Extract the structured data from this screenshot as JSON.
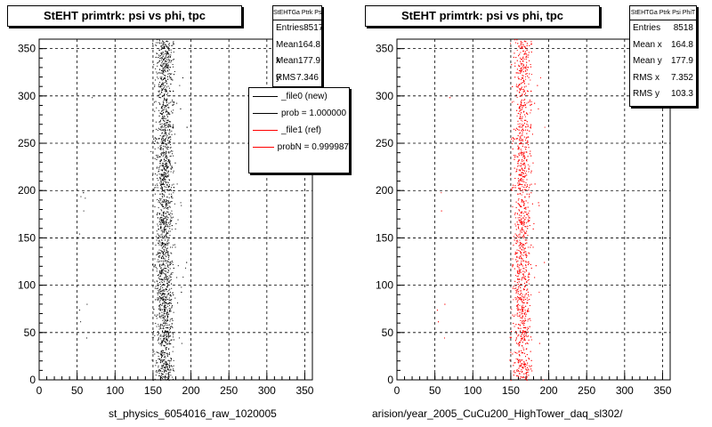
{
  "colors": {
    "new": "#000000",
    "ref": "#ff0000",
    "grid": "#000000"
  },
  "panels": [
    {
      "title": "StEHT primtrk: psi vs phi, tpc",
      "stats": {
        "header": "StEHTGa Ptrk Psi PhiT",
        "rows": [
          {
            "label": "Entries",
            "value": "8517"
          },
          {
            "label": "Mean x",
            "value": "164.8"
          },
          {
            "label": "Mean y",
            "value": "177.9"
          },
          {
            "label": "RMS x",
            "value": "7.346"
          }
        ]
      },
      "legend": [
        {
          "label": "_file0 (new)",
          "color": "#000000"
        },
        {
          "label": "prob = 1.000000",
          "color": "#000000"
        },
        {
          "label": "_file1 (ref)",
          "color": "#ff0000"
        },
        {
          "label": "probN = 0.999987",
          "color": "#ff0000"
        }
      ],
      "xcaption": "st_physics_6054016_raw_1020005"
    },
    {
      "title": "StEHT primtrk: psi vs phi, tpc",
      "stats": {
        "header": "StEHTGa Ptrk Psi PhiT",
        "rows": [
          {
            "label": "Entries",
            "value": "8518"
          },
          {
            "label": "Mean x",
            "value": "164.8"
          },
          {
            "label": "Mean y",
            "value": "177.9"
          },
          {
            "label": "RMS x",
            "value": "7.352"
          },
          {
            "label": "RMS y",
            "value": "103.3"
          }
        ]
      },
      "xcaption": "arision/year_2005_CuCu200_HighTower_daq_sl302/"
    }
  ],
  "chart_data": [
    {
      "type": "scatter",
      "title": "StEHT primtrk: psi vs phi, tpc",
      "xlabel": "st_physics_6054016_raw_1020005",
      "ylabel": "",
      "xlim": [
        0,
        360
      ],
      "ylim": [
        0,
        360
      ],
      "xticks": [
        0,
        50,
        100,
        150,
        200,
        250,
        300,
        350
      ],
      "yticks": [
        0,
        50,
        100,
        150,
        200,
        250,
        300,
        350
      ],
      "grid": true,
      "series": [
        {
          "name": "_file0 (new)",
          "color": "#000000",
          "entries": 8517,
          "mean_x": 164.8,
          "mean_y": 177.9,
          "rms_x": 7.346,
          "x_range": [
            150,
            180
          ],
          "y_range": [
            0,
            360
          ]
        }
      ]
    },
    {
      "type": "scatter",
      "title": "StEHT primtrk: psi vs phi, tpc",
      "xlabel": "arision/year_2005_CuCu200_HighTower_daq_sl302/",
      "ylabel": "",
      "xlim": [
        0,
        360
      ],
      "ylim": [
        0,
        360
      ],
      "xticks": [
        0,
        50,
        100,
        150,
        200,
        250,
        300,
        350
      ],
      "yticks": [
        0,
        50,
        100,
        150,
        200,
        250,
        300,
        350
      ],
      "grid": true,
      "series": [
        {
          "name": "_file1 (ref)",
          "color": "#ff0000",
          "entries": 8518,
          "mean_x": 164.8,
          "mean_y": 177.9,
          "rms_x": 7.352,
          "rms_y": 103.3,
          "x_range": [
            150,
            180
          ],
          "y_range": [
            0,
            360
          ]
        }
      ]
    }
  ]
}
